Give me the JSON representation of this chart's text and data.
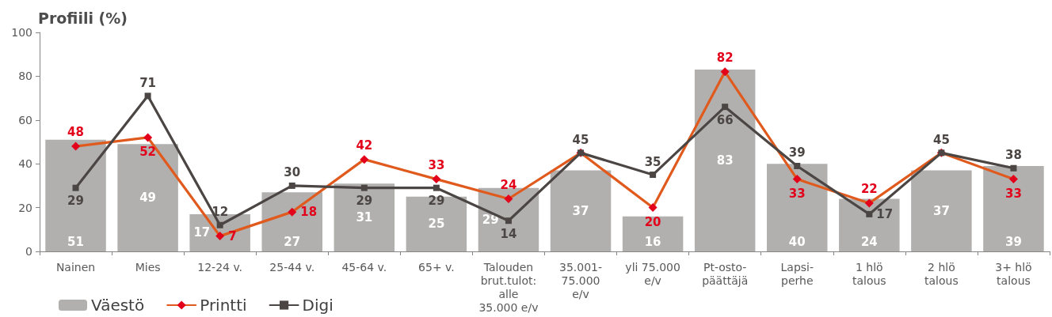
{
  "chart_data": {
    "type": "bar",
    "title": "Profiili (%)",
    "categories": [
      "Nainen",
      "Mies",
      "12-24 v.",
      "25-44 v.",
      "45-64 v.",
      "65+ v.",
      "Talouden\nbrut.tulot:\nalle\n35.000 e/v",
      "35.001-\n75.000\ne/v",
      "yli 75.000\ne/v",
      "Pt-osto-\npäättäjä",
      "Lapsi-\nperhe",
      "1 hlö\ntalous",
      "2 hlö\ntalous",
      "3+ hlö\ntalous"
    ],
    "series": [
      {
        "name": "Väestö",
        "color": "#b1b0ae",
        "values": [
          51,
          49,
          17,
          27,
          31,
          25,
          29,
          37,
          16,
          83,
          40,
          24,
          37,
          39
        ]
      },
      {
        "name": "Printti",
        "type": "line",
        "color": "#e05a1e",
        "colors": [
          "#e2001a",
          "#e2001a",
          "#e2001a",
          "#e2001a",
          "#e2001a",
          "#e2001a",
          "#e2001a",
          "#e2001a",
          "#e2001a",
          "#e2001a",
          "#e2001a",
          "#e2001a",
          "#e2001a",
          "#e2001a"
        ],
        "marker": "diamond",
        "values": [
          48,
          52,
          7,
          18,
          42,
          33,
          24,
          45,
          20,
          82,
          33,
          22,
          45,
          33
        ],
        "value_labels": [
          "48",
          "52",
          "7",
          "18",
          "42",
          "33",
          "24",
          null,
          "20",
          "82",
          "33",
          "22",
          null,
          "33"
        ]
      },
      {
        "name": "Digi",
        "type": "line",
        "color": "#4b4643",
        "marker": "square",
        "values": [
          29,
          71,
          12,
          30,
          29,
          29,
          14,
          45,
          35,
          66,
          39,
          17,
          45,
          38
        ]
      }
    ],
    "ylim": [
      0,
      100
    ],
    "yticks": [
      0,
      20,
      40,
      60,
      80,
      100
    ],
    "grid": false,
    "legend": "bottom left",
    "data_labels": true,
    "line_style": "solid"
  }
}
